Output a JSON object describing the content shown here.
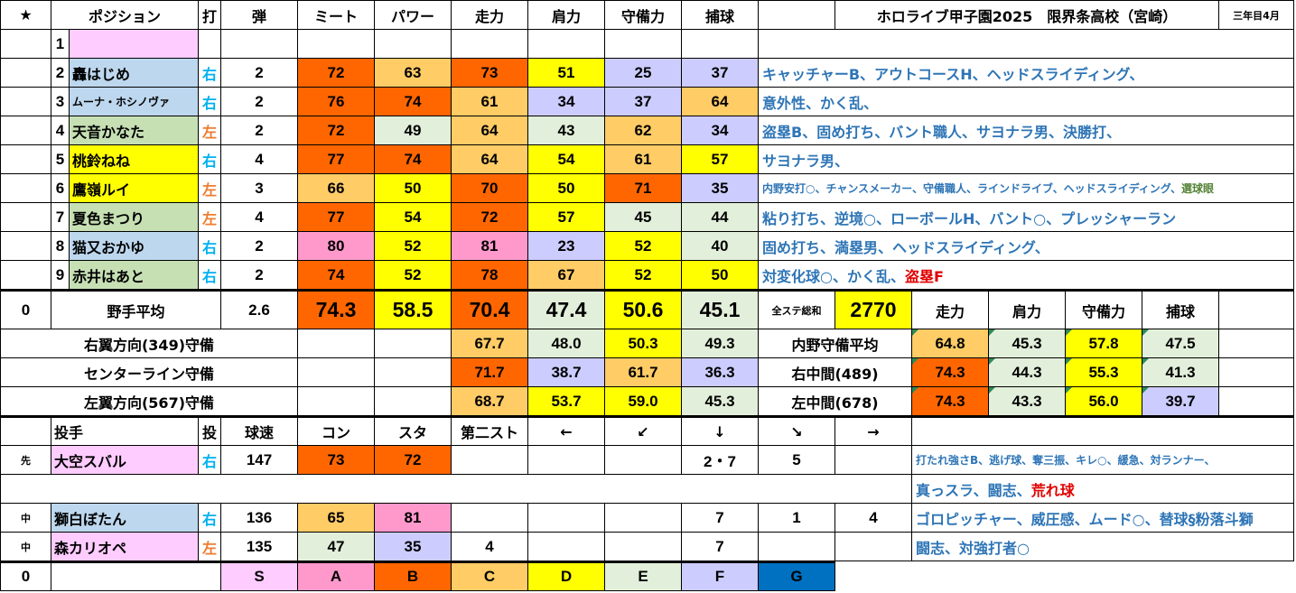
{
  "header": {
    "star": "★",
    "position": "ポジション",
    "bat": "打",
    "ballistic": "弾",
    "meet": "ミート",
    "power": "パワー",
    "speed": "走力",
    "arm": "肩力",
    "defense": "守備力",
    "catch": "捕球",
    "title": "ホロライブ甲子園2025　限界条高校（宮崎）",
    "period": "三年目4月"
  },
  "batters": [
    {
      "no": "1",
      "name": "",
      "hand": "",
      "ballistic": "",
      "meet": "",
      "power": "",
      "speed": "",
      "arm": "",
      "defense": "",
      "catch": "",
      "skills": ""
    },
    {
      "no": "2",
      "name": "轟はじめ",
      "hand": "右",
      "ballistic": "2",
      "meet": "72",
      "power": "63",
      "speed": "73",
      "arm": "51",
      "defense": "25",
      "catch": "37",
      "skills": "キャッチャーB、アウトコースH、ヘッドスライディング、"
    },
    {
      "no": "3",
      "name": "ムーナ・ホシノヴァ",
      "hand": "右",
      "ballistic": "2",
      "meet": "76",
      "power": "74",
      "speed": "61",
      "arm": "34",
      "defense": "37",
      "catch": "64",
      "skills": "意外性、かく乱、"
    },
    {
      "no": "4",
      "name": "天音かなた",
      "hand": "左",
      "ballistic": "2",
      "meet": "72",
      "power": "49",
      "speed": "64",
      "arm": "43",
      "defense": "62",
      "catch": "34",
      "skills": "盗塁B、固め打ち、バント職人、サヨナラ男、決勝打、"
    },
    {
      "no": "5",
      "name": "桃鈴ねね",
      "hand": "右",
      "ballistic": "4",
      "meet": "77",
      "power": "74",
      "speed": "64",
      "arm": "54",
      "defense": "61",
      "catch": "57",
      "skills": "サヨナラ男、"
    },
    {
      "no": "6",
      "name": "鷹嶺ルイ",
      "hand": "左",
      "ballistic": "3",
      "meet": "66",
      "power": "50",
      "speed": "70",
      "arm": "50",
      "defense": "71",
      "catch": "35",
      "skills": "内野安打○、チャンスメーカー、守備職人、ラインドライブ、ヘッドスライディング、",
      "skills_extra": "選球眼"
    },
    {
      "no": "7",
      "name": "夏色まつり",
      "hand": "左",
      "ballistic": "4",
      "meet": "77",
      "power": "54",
      "speed": "72",
      "arm": "57",
      "defense": "45",
      "catch": "44",
      "skills": "粘り打ち、逆境○、ローボールH、バント○、プレッシャーラン"
    },
    {
      "no": "8",
      "name": "猫又おかゆ",
      "hand": "右",
      "ballistic": "2",
      "meet": "80",
      "power": "52",
      "speed": "81",
      "arm": "23",
      "defense": "52",
      "catch": "40",
      "skills": "固め打ち、満塁男、ヘッドスライディング、"
    },
    {
      "no": "9",
      "name": "赤井はあと",
      "hand": "右",
      "ballistic": "2",
      "meet": "74",
      "power": "52",
      "speed": "78",
      "arm": "67",
      "defense": "52",
      "catch": "50",
      "skills": "対変化球○、かく乱、",
      "skills_red": "盗塁F"
    }
  ],
  "average": {
    "zero": "0",
    "label": "野手平均",
    "ballistic": "2.6",
    "meet": "74.3",
    "power": "58.5",
    "speed": "70.4",
    "arm": "47.4",
    "defense": "50.6",
    "catch": "45.1",
    "total_label": "全ステ総和",
    "total": "2770",
    "h_speed": "走力",
    "h_arm": "肩力",
    "h_defense": "守備力",
    "h_catch": "捕球"
  },
  "defense_rows": [
    {
      "label": "右翼方向(349)守備",
      "speed": "67.7",
      "arm": "48.0",
      "defense": "50.3",
      "catch": "49.3",
      "r_label": "内野守備平均",
      "r_speed": "64.8",
      "r_arm": "45.3",
      "r_defense": "57.8",
      "r_catch": "47.5"
    },
    {
      "label": "センターライン守備",
      "speed": "71.7",
      "arm": "38.7",
      "defense": "61.7",
      "catch": "36.3",
      "r_label": "右中間(489)",
      "r_speed": "74.3",
      "r_arm": "44.3",
      "r_defense": "55.3",
      "r_catch": "41.3"
    },
    {
      "label": "左翼方向(567)守備",
      "speed": "68.7",
      "arm": "53.7",
      "defense": "59.0",
      "catch": "45.3",
      "r_label": "左中間(678)",
      "r_speed": "74.3",
      "r_arm": "43.3",
      "r_defense": "56.0",
      "r_catch": "39.7"
    }
  ],
  "pitcher_header": {
    "label": "投手",
    "throw": "投",
    "velocity": "球速",
    "control": "コン",
    "stamina": "スタ",
    "second": "第二スト",
    "a1": "←",
    "a2": "↙",
    "a3": "↓",
    "a4": "↘",
    "a5": "→"
  },
  "pitchers": [
    {
      "role": "先",
      "name": "大空スバル",
      "hand": "右",
      "velocity": "147",
      "control": "73",
      "stamina": "72",
      "second": "",
      "a1": "",
      "a2": "",
      "a3": "2・7",
      "a4": "5",
      "a5": "",
      "skills": "打たれ強さB、逃げ球、奪三振、キレ○、緩急、対ランナー、",
      "skills2": "真っスラ、闘志、",
      "skills2_red": "荒れ球"
    },
    {
      "role": "中",
      "name": "獅白ぼたん",
      "hand": "右",
      "velocity": "136",
      "control": "65",
      "stamina": "81",
      "second": "",
      "a1": "",
      "a2": "",
      "a3": "7",
      "a4": "1",
      "a5": "4",
      "skills": "ゴロピッチャー、威圧感、ムード○、替球§粉落斗獅"
    },
    {
      "role": "中",
      "name": "森カリオペ",
      "hand": "左",
      "velocity": "135",
      "control": "47",
      "stamina": "35",
      "second": "4",
      "a1": "",
      "a2": "",
      "a3": "7",
      "a4": "",
      "a5": "",
      "skills": "闘志、対強打者○"
    }
  ],
  "legend": {
    "zero": "0",
    "grades": [
      "S",
      "A",
      "B",
      "C",
      "D",
      "E",
      "F",
      "G"
    ]
  },
  "colors": {
    "S": "#ffccff",
    "A": "#ff99cc",
    "B": "#ff6600",
    "C": "#ffcc66",
    "D": "#ffff00",
    "E": "#e2efda",
    "F": "#ccccff",
    "G": "#0070c0",
    "name_blue": "#bdd7ee",
    "name_green": "#c6e0b4",
    "name_yellow": "#ffff00",
    "name_pink": "#ffccff",
    "skill_text": "#2e75b6"
  }
}
